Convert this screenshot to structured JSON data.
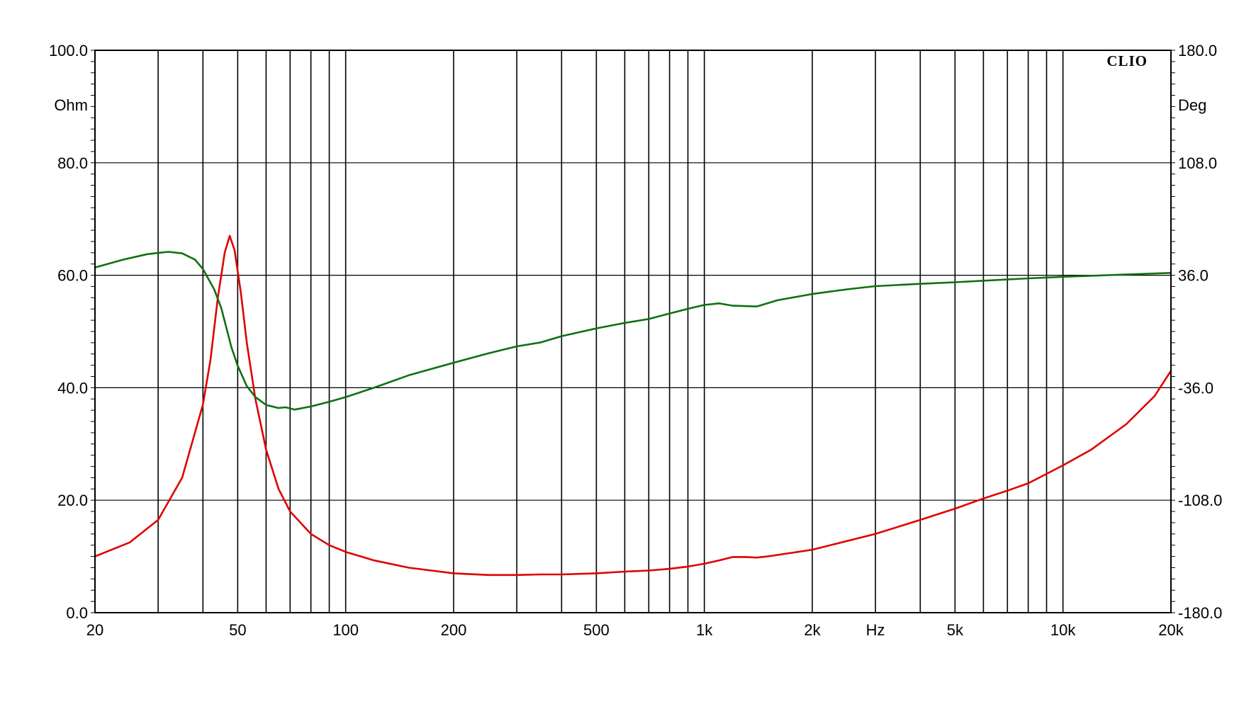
{
  "chart_data": {
    "type": "line",
    "title": "",
    "brand": "CLIO",
    "xlabel": "Hz",
    "ylabel_left": "Ohm",
    "ylabel_right": "Deg",
    "xscale": "log",
    "xlim": [
      20,
      20000
    ],
    "ylim_left": [
      0,
      100
    ],
    "ylim_right": [
      -180,
      180
    ],
    "grid": true,
    "x_tick_labels": [
      {
        "value": 20,
        "label": "20"
      },
      {
        "value": 50,
        "label": "50"
      },
      {
        "value": 100,
        "label": "100"
      },
      {
        "value": 200,
        "label": "200"
      },
      {
        "value": 500,
        "label": "500"
      },
      {
        "value": 1000,
        "label": "1k"
      },
      {
        "value": 2000,
        "label": "2k"
      },
      {
        "value": 3000,
        "label": "Hz"
      },
      {
        "value": 5000,
        "label": "5k"
      },
      {
        "value": 10000,
        "label": "10k"
      },
      {
        "value": 20000,
        "label": "20k"
      }
    ],
    "y_left_ticks": [
      {
        "value": 0,
        "label": "0.0"
      },
      {
        "value": 20,
        "label": "20.0"
      },
      {
        "value": 40,
        "label": "40.0"
      },
      {
        "value": 60,
        "label": "60.0"
      },
      {
        "value": 80,
        "label": "80.0"
      },
      {
        "value": 100,
        "label": "100.0"
      }
    ],
    "y_right_ticks": [
      {
        "value": -180,
        "label": "-180.0"
      },
      {
        "value": -108,
        "label": "-108.0"
      },
      {
        "value": -36,
        "label": "-36.0"
      },
      {
        "value": 36,
        "label": "36.0"
      },
      {
        "value": 108,
        "label": "108.0"
      },
      {
        "value": 180,
        "label": "180.0"
      }
    ],
    "series": [
      {
        "axis": "left",
        "color": "#e00000",
        "points": [
          [
            20,
            10.0
          ],
          [
            25,
            12.5
          ],
          [
            30,
            16.5
          ],
          [
            35,
            24.0
          ],
          [
            40,
            37.0
          ],
          [
            42,
            45.0
          ],
          [
            44,
            56.0
          ],
          [
            46,
            64.0
          ],
          [
            47.5,
            67.0
          ],
          [
            49,
            64.5
          ],
          [
            51,
            57.0
          ],
          [
            53,
            48.0
          ],
          [
            56,
            38.0
          ],
          [
            60,
            29.0
          ],
          [
            65,
            22.0
          ],
          [
            70,
            18.0
          ],
          [
            80,
            14.0
          ],
          [
            90,
            12.0
          ],
          [
            100,
            10.8
          ],
          [
            120,
            9.3
          ],
          [
            150,
            8.0
          ],
          [
            200,
            7.0
          ],
          [
            250,
            6.7
          ],
          [
            300,
            6.7
          ],
          [
            350,
            6.8
          ],
          [
            400,
            6.8
          ],
          [
            500,
            7.0
          ],
          [
            600,
            7.3
          ],
          [
            700,
            7.5
          ],
          [
            800,
            7.8
          ],
          [
            900,
            8.2
          ],
          [
            1000,
            8.7
          ],
          [
            1100,
            9.3
          ],
          [
            1200,
            9.9
          ],
          [
            1300,
            9.9
          ],
          [
            1400,
            9.8
          ],
          [
            1500,
            10.0
          ],
          [
            2000,
            11.2
          ],
          [
            3000,
            14.0
          ],
          [
            4000,
            16.5
          ],
          [
            5000,
            18.5
          ],
          [
            6000,
            20.3
          ],
          [
            7000,
            21.7
          ],
          [
            8000,
            23.0
          ],
          [
            10000,
            26.2
          ],
          [
            12000,
            29.0
          ],
          [
            15000,
            33.5
          ],
          [
            18000,
            38.5
          ],
          [
            20000,
            43.0
          ]
        ]
      },
      {
        "axis": "right",
        "color": "#107010",
        "points": [
          [
            20,
            41.0
          ],
          [
            24,
            46.0
          ],
          [
            28,
            49.5
          ],
          [
            32,
            51.0
          ],
          [
            35,
            50.0
          ],
          [
            38,
            46.0
          ],
          [
            40,
            40.0
          ],
          [
            43,
            27.0
          ],
          [
            45,
            15.0
          ],
          [
            48,
            -10.0
          ],
          [
            50,
            -22.0
          ],
          [
            53,
            -35.0
          ],
          [
            56,
            -42.0
          ],
          [
            60,
            -47.0
          ],
          [
            65,
            -49.0
          ],
          [
            68,
            -48.5
          ],
          [
            72,
            -50.0
          ],
          [
            80,
            -48.0
          ],
          [
            90,
            -45.0
          ],
          [
            100,
            -42.0
          ],
          [
            120,
            -36.0
          ],
          [
            150,
            -28.0
          ],
          [
            200,
            -20.0
          ],
          [
            250,
            -14.0
          ],
          [
            300,
            -9.5
          ],
          [
            350,
            -7.0
          ],
          [
            400,
            -3.0
          ],
          [
            500,
            2.0
          ],
          [
            600,
            5.5
          ],
          [
            700,
            8.0
          ],
          [
            800,
            11.5
          ],
          [
            900,
            14.5
          ],
          [
            1000,
            17.0
          ],
          [
            1100,
            18.0
          ],
          [
            1200,
            16.5
          ],
          [
            1400,
            16.0
          ],
          [
            1600,
            20.0
          ],
          [
            2000,
            24.0
          ],
          [
            2500,
            27.0
          ],
          [
            3000,
            29.0
          ],
          [
            4000,
            30.5
          ],
          [
            5000,
            31.5
          ],
          [
            6000,
            32.5
          ],
          [
            8000,
            34.0
          ],
          [
            10000,
            35.0
          ],
          [
            15000,
            36.5
          ],
          [
            20000,
            37.5
          ]
        ]
      }
    ]
  }
}
